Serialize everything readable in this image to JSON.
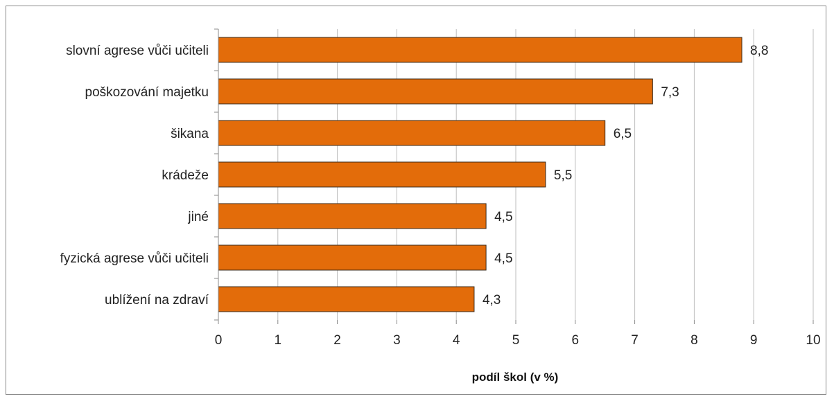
{
  "chart_data": {
    "type": "bar",
    "orientation": "horizontal",
    "categories": [
      "slovní agrese vůči učiteli",
      "poškozování majetku",
      "šikana",
      "krádeže",
      "jiné",
      "fyzická agrese vůči učiteli",
      "ublížení na zdraví"
    ],
    "values": [
      8.8,
      7.3,
      6.5,
      5.5,
      4.5,
      4.5,
      4.3
    ],
    "value_labels": [
      "8,8",
      "7,3",
      "6,5",
      "5,5",
      "4,5",
      "4,5",
      "4,3"
    ],
    "title": "",
    "xlabel": "podíl škol (v %)",
    "ylabel": "",
    "xlim": [
      0,
      10
    ],
    "xticks": [
      "0",
      "1",
      "2",
      "3",
      "4",
      "5",
      "6",
      "7",
      "8",
      "9",
      "10"
    ],
    "grid": "vertical",
    "legend": "none",
    "bar_color": "#E36C0A",
    "bar_edge_color": "#3a2a1a"
  }
}
